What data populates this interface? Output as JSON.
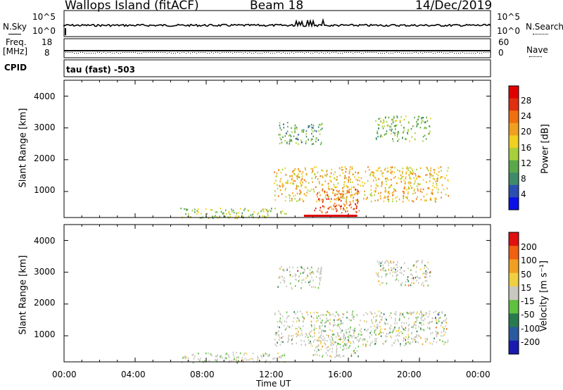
{
  "header": {
    "station": "Wallops Island (fitACF)",
    "beam": "Beam 18",
    "date": "14/Dec/2019"
  },
  "noise_panel": {
    "left_label": "N.Sky",
    "left_ticks": [
      "10^5",
      "10^0"
    ],
    "right_label": "N.Search",
    "right_ticks": [
      "10^5",
      "10^0"
    ]
  },
  "freq_panel": {
    "left_label_1": "Freq.",
    "left_label_2": "[MHz]",
    "left_ticks": [
      "18",
      "8"
    ],
    "right_label": "Nave",
    "right_ticks": [
      "60",
      "0"
    ]
  },
  "cpid": {
    "label": "CPID",
    "value": "tau (fast) -503"
  },
  "chart_data": {
    "type": "heatmap",
    "x_axis": {
      "label": "Time UT",
      "ticks": [
        "00:00",
        "04:00",
        "08:00",
        "12:00",
        "16:00",
        "20:00",
        "00:00"
      ],
      "range_hours": [
        0,
        24
      ]
    },
    "power_panel": {
      "ylabel": "Slant Range [km]",
      "yticks": [
        "4000",
        "3000",
        "2000",
        "1000"
      ],
      "ylim": [
        180,
        4500
      ],
      "colorbar_label": "Power [dB]",
      "colorbar_ticks": [
        "28",
        "24",
        "20",
        "16",
        "12",
        "8",
        "4"
      ],
      "colorbar_range": [
        0,
        30
      ],
      "colors": [
        "#0a10e8",
        "#2a4fb0",
        "#3f8a6a",
        "#5aa84a",
        "#a8d03a",
        "#f0d020",
        "#f0a020",
        "#f07010",
        "#e03010",
        "#e00000"
      ]
    },
    "velocity_panel": {
      "ylabel": "Slant Range [km]",
      "yticks": [
        "4000",
        "3000",
        "2000",
        "1000"
      ],
      "ylim": [
        180,
        4500
      ],
      "colorbar_label": "Velocity [m s⁻¹]",
      "colorbar_ticks": [
        "200",
        "100",
        "50",
        "15",
        "-15",
        "-50",
        "-100",
        "-200"
      ],
      "colors": [
        "#1a1ab0",
        "#2a5aa0",
        "#2a7a50",
        "#60c040",
        "#c8c8c0",
        "#f0d040",
        "#f0a020",
        "#f06010",
        "#e01010"
      ]
    },
    "echo_regions": [
      {
        "t0": 11.8,
        "t1": 21.6,
        "r0": 700,
        "r1": 1800,
        "power": 16
      },
      {
        "t0": 14.0,
        "t1": 16.6,
        "r0": 350,
        "r1": 1100,
        "power": 22
      },
      {
        "t0": 17.5,
        "t1": 20.6,
        "r0": 2600,
        "r1": 3400,
        "power": 10
      },
      {
        "t0": 12.0,
        "t1": 14.5,
        "r0": 2500,
        "r1": 3200,
        "power": 8
      },
      {
        "t0": 6.5,
        "t1": 12.5,
        "r0": 180,
        "r1": 500,
        "power": 12
      }
    ]
  }
}
